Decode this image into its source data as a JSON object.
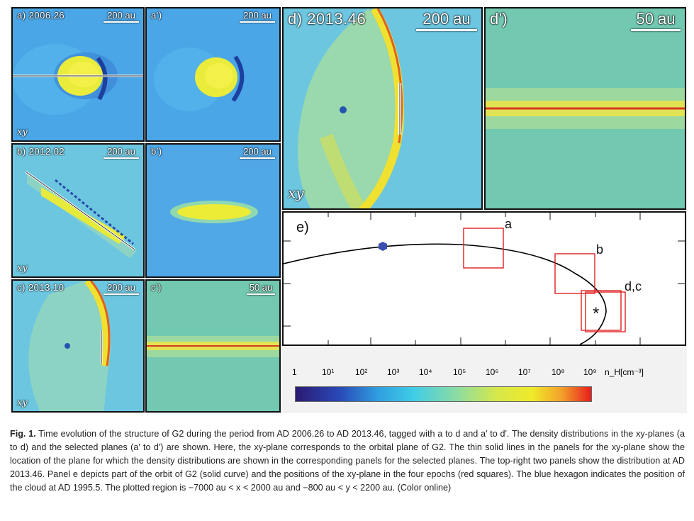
{
  "panels": {
    "a": {
      "label": "a) 2006.26",
      "scale": "200 au",
      "plane": "xy"
    },
    "a_prime": {
      "label": "a')",
      "scale": "200 au"
    },
    "b": {
      "label": "b) 2012.02",
      "scale": "200 au",
      "plane": "xy"
    },
    "b_prime": {
      "label": "b')",
      "scale": "200 au"
    },
    "c": {
      "label": "c) 2013.10",
      "scale": "200 au",
      "plane": "xy"
    },
    "c_prime": {
      "label": "c')",
      "scale": "50 au"
    },
    "d": {
      "label": "d) 2013.46",
      "scale": "200 au",
      "plane": "xy"
    },
    "d_prime": {
      "label": "d')",
      "scale": "50 au"
    }
  },
  "orbit_panel": {
    "label": "e)",
    "markers": [
      {
        "label": "a"
      },
      {
        "label": "b"
      },
      {
        "label": "d,c"
      }
    ],
    "star_symbol": "*",
    "colors": {
      "orbit": "#000000",
      "squares": "#e02020",
      "hexagon": "#3a4fb0"
    }
  },
  "colorbar": {
    "ticks": [
      "1",
      "10¹",
      "10²",
      "10³",
      "10⁴",
      "10⁵",
      "10⁶",
      "10⁷",
      "10⁸",
      "10⁹"
    ],
    "unit": "n_H[cm⁻³]",
    "colors": [
      "#2b1a72",
      "#2f6fd0",
      "#2fc4e8",
      "#8fdca0",
      "#f0ea2a",
      "#e81e1e"
    ]
  },
  "caption": {
    "fig": "Fig. 1.",
    "text": "Time evolution of the structure of G2 during the period from AD 2006.26 to AD 2013.46, tagged with a to d and a′ to d′. The density distributions in the xy-planes (a to d) and the selected planes (a′ to d′) are shown. Here, the xy-plane corresponds to the orbital plane of G2. The thin solid lines in the panels for the xy-plane show the location of the plane for which the density distributions are shown in the corresponding panels for the selected planes. The top-right two panels show the distribution at AD 2013.46. Panel e depicts part of the orbit of G2 (solid curve) and the positions of the xy-plane in the four epochs (red squares). The blue hexagon indicates the position of the cloud at AD 1995.5. The plotted region is −7000 au < x < 2000 au and −800 au < y < 2200 au. (Color online)"
  }
}
